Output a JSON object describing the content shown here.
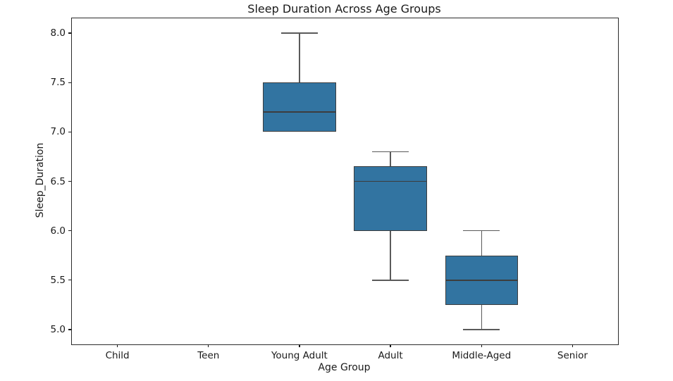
{
  "chart_data": {
    "type": "boxplot",
    "title": "Sleep Duration Across Age Groups",
    "xlabel": "Age Group",
    "ylabel": "Sleep_Duration",
    "categories": [
      "Child",
      "Teen",
      "Young Adult",
      "Adult",
      "Middle-Aged",
      "Senior"
    ],
    "ytick_labels": [
      "5.0",
      "5.5",
      "6.0",
      "6.5",
      "7.0",
      "7.5",
      "8.0"
    ],
    "ylim": [
      4.85,
      8.15
    ],
    "grid": false,
    "legend": "none",
    "series": [
      {
        "category": "Child",
        "stats": null
      },
      {
        "category": "Teen",
        "stats": null
      },
      {
        "category": "Young Adult",
        "stats": {
          "whisker_low": 7.0,
          "q1": 7.0,
          "median": 7.2,
          "q3": 7.5,
          "whisker_high": 8.0
        }
      },
      {
        "category": "Adult",
        "stats": {
          "whisker_low": 5.5,
          "q1": 6.0,
          "median": 6.5,
          "q3": 6.65,
          "whisker_high": 6.8
        }
      },
      {
        "category": "Middle-Aged",
        "stats": {
          "whisker_low": 5.0,
          "q1": 5.25,
          "median": 5.5,
          "q3": 5.75,
          "whisker_high": 6.0
        }
      },
      {
        "category": "Senior",
        "stats": null
      }
    ],
    "colors": {
      "box_fill": "#3274a1",
      "box_edge": "#3d3d3d",
      "median": "#3d3d3d",
      "whisker": "#5a5a5a",
      "spine": "#2b2b2b",
      "text": "#1a1a1a",
      "background": "#ffffff"
    }
  }
}
